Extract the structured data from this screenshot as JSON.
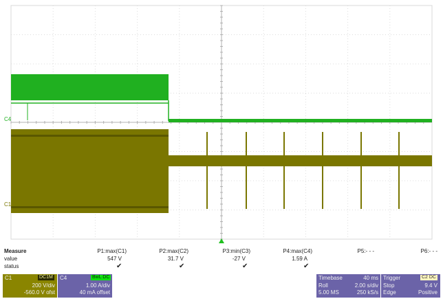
{
  "channels": {
    "c1": {
      "label": "C1",
      "tag": "DC1M",
      "vdiv": "200 V/div",
      "offset": "-560.0 V ofst",
      "color": "#7a7600"
    },
    "c4": {
      "label": "C4",
      "tag": "BwL DC",
      "vdiv": "1.00 A/div",
      "offset": "40 mA offset",
      "color": "#20b020"
    }
  },
  "trace_markers": {
    "c4": "C4",
    "c1": "C1"
  },
  "measure": {
    "title": "Measure",
    "row_value": "value",
    "row_status": "status",
    "params": [
      {
        "name": "P1:max(C1)",
        "value": "547 V",
        "status": "✔"
      },
      {
        "name": "P2:max(C2)",
        "value": "31.7 V",
        "status": "✔"
      },
      {
        "name": "P3:min(C3)",
        "value": "-27 V",
        "status": "✔"
      },
      {
        "name": "P4:max(C4)",
        "value": "1.59 A",
        "status": "✔"
      },
      {
        "name": "P5:- - -",
        "value": "",
        "status": ""
      },
      {
        "name": "P6:- - -",
        "value": "",
        "status": ""
      }
    ]
  },
  "timebase": {
    "label": "Timebase",
    "value": "40 ms",
    "mode": "Roll",
    "sdiv": "2.00 s/div",
    "samples": "5.00 MS",
    "rate": "250 kS/s"
  },
  "trigger": {
    "label": "Trigger",
    "tag": "C2 DC",
    "mode": "Stop",
    "level": "9.4 V",
    "type": "Edge",
    "slope": "Positive"
  }
}
